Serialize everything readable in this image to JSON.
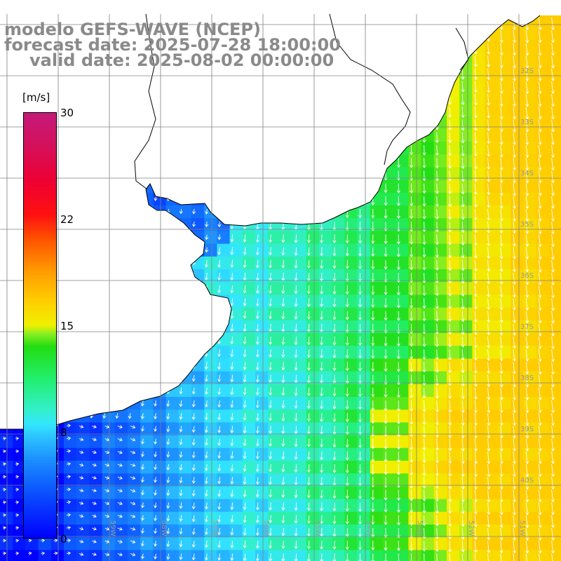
{
  "title": {
    "line1": "modelo GEFS-WAVE (NCEP)",
    "line2": "forecast date: 2025-07-28 18:00:00",
    "line3": "valid date: 2025-08-02 00:00:00"
  },
  "colorbar": {
    "unit": "[m/s]",
    "range": [
      0,
      30
    ],
    "ticks": [
      "30",
      "22",
      "15",
      "8",
      "0"
    ]
  },
  "lat_labels": [
    "32S",
    "33S",
    "34S",
    "35S",
    "36S",
    "37S",
    "38S",
    "39S",
    "40S"
  ],
  "lon_labels": [
    "59W",
    "58W",
    "57W",
    "56W",
    "55W",
    "54W",
    "53W",
    "52W",
    "51W"
  ],
  "colors": {
    "low": "#0000ff",
    "mid": "#33e6ff",
    "high": "#22dd11",
    "max": "#c41a7a",
    "land": "#ffffff",
    "grid": "#808080",
    "arrow": "#ffffff",
    "title": "#8a8a8a"
  },
  "field": "wind speed with direction arrows (northeasterly flow over ocean, weaker near coast)"
}
